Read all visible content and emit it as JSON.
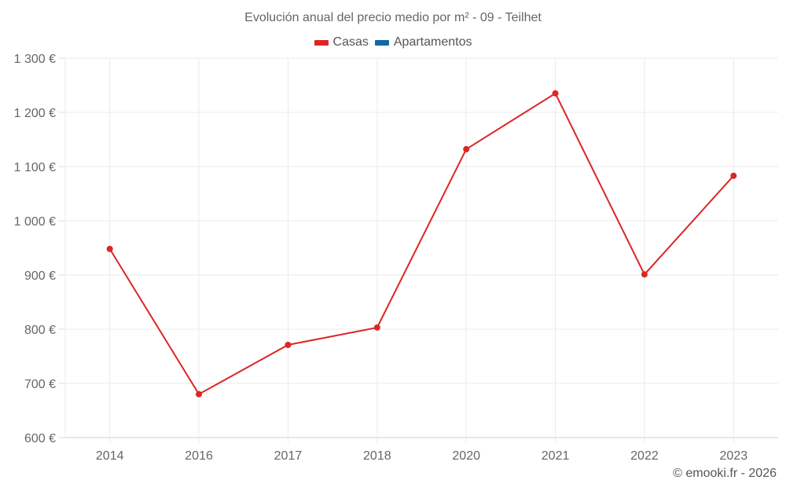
{
  "title": "Evolución anual del precio medio por m² - 09 - Teilhet",
  "legend": [
    {
      "label": "Casas",
      "color": "#dc2626"
    },
    {
      "label": "Apartamentos",
      "color": "#0f6aa6"
    }
  ],
  "credit": "© emooki.fr - 2026",
  "chart_data": {
    "type": "line",
    "title": "Evolución anual del precio medio por m² - 09 - Teilhet",
    "xlabel": "",
    "ylabel": "",
    "categories": [
      "2014",
      "2016",
      "2017",
      "2018",
      "2020",
      "2021",
      "2022",
      "2023"
    ],
    "series": [
      {
        "name": "Casas",
        "color": "#dc2626",
        "values": [
          948,
          680,
          771,
          803,
          1132,
          1235,
          901,
          1083
        ]
      },
      {
        "name": "Apartamentos",
        "color": "#0f6aa6",
        "values": []
      }
    ],
    "ylim": [
      600,
      1300
    ],
    "yticks": [
      600,
      700,
      800,
      900,
      1000,
      1100,
      1200,
      1300
    ],
    "ytick_labels": [
      "600 €",
      "700 €",
      "800 €",
      "900 €",
      "1 000 €",
      "1 100 €",
      "1 200 €",
      "1 300 €"
    ],
    "grid": true,
    "legend_position": "top"
  }
}
